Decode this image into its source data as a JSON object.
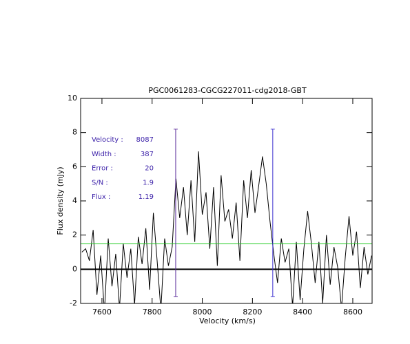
{
  "chart_data": {
    "type": "line",
    "title": "PGC0061283-CGCG227011-cdg2018-GBT",
    "xlabel": "Velocity (km/s)",
    "ylabel": "Flux density (mJy)",
    "color": "#000000",
    "x": [
      7520,
      7535,
      7550,
      7565,
      7580,
      7595,
      7610,
      7625,
      7640,
      7655,
      7670,
      7685,
      7700,
      7715,
      7730,
      7745,
      7760,
      7775,
      7790,
      7805,
      7820,
      7835,
      7850,
      7865,
      7880,
      7895,
      7910,
      7925,
      7940,
      7955,
      7970,
      7985,
      8000,
      8015,
      8030,
      8045,
      8060,
      8075,
      8090,
      8105,
      8120,
      8135,
      8150,
      8165,
      8180,
      8195,
      8210,
      8225,
      8240,
      8255,
      8270,
      8285,
      8300,
      8315,
      8330,
      8345,
      8360,
      8375,
      8390,
      8405,
      8420,
      8435,
      8450,
      8465,
      8480,
      8495,
      8510,
      8525,
      8540,
      8555,
      8570,
      8585,
      8600,
      8615,
      8630,
      8645,
      8660,
      8675
    ],
    "values": [
      1.0,
      1.2,
      0.5,
      2.3,
      -1.5,
      0.8,
      -2.5,
      1.8,
      -1.0,
      0.9,
      -2.3,
      1.5,
      -0.5,
      1.2,
      -2.1,
      1.9,
      0.3,
      2.4,
      -1.2,
      3.3,
      0.5,
      -2.4,
      1.8,
      0.2,
      1.3,
      5.3,
      3.0,
      4.8,
      2.0,
      5.2,
      1.6,
      6.9,
      3.2,
      4.5,
      1.2,
      4.8,
      0.2,
      5.5,
      2.8,
      3.5,
      1.8,
      3.9,
      0.5,
      5.2,
      3.0,
      5.8,
      3.3,
      4.9,
      6.6,
      5.0,
      2.8,
      0.9,
      -0.8,
      1.8,
      0.4,
      1.2,
      -2.2,
      1.6,
      -1.8,
      1.2,
      3.4,
      1.5,
      -0.8,
      1.6,
      -2.0,
      2.0,
      -0.9,
      1.3,
      0.1,
      -2.3,
      0.7,
      3.1,
      0.8,
      2.2,
      -1.1,
      1.3,
      -0.3,
      0.8
    ],
    "xlim": [
      7515,
      8677
    ],
    "ylim": [
      -2,
      10
    ],
    "xticks": [
      7600,
      7800,
      8000,
      8200,
      8400,
      8600
    ],
    "yticks": [
      -2,
      0,
      2,
      4,
      6,
      8,
      10
    ],
    "hlines": [
      {
        "y": 0,
        "color": "#000000",
        "width": 2
      },
      {
        "y": 1.5,
        "color": "#22cc22",
        "width": 1
      }
    ],
    "vlines": [
      {
        "x": 7894,
        "y": [
          -1.6,
          8.2
        ],
        "color": "#5a2a9a"
      },
      {
        "x": 8281,
        "y": [
          -1.6,
          8.2
        ],
        "color": "#3a2fcf"
      }
    ],
    "annotations": [
      {
        "label": "Velocity :",
        "value": "8087"
      },
      {
        "label": "Width :",
        "value": "387"
      },
      {
        "label": "Error :",
        "value": "20"
      },
      {
        "label": "S/N :",
        "value": "1.9"
      },
      {
        "label": "Flux :",
        "value": "1.19"
      }
    ]
  }
}
